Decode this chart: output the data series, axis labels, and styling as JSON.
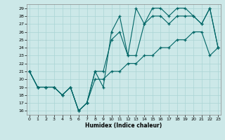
{
  "xlabel": "Humidex (Indice chaleur)",
  "background_color": "#cce8e8",
  "line_color": "#006666",
  "grid_color": "#aad4d4",
  "xlim": [
    0,
    23
  ],
  "ylim": [
    16,
    29
  ],
  "yticks": [
    16,
    17,
    18,
    19,
    20,
    21,
    22,
    23,
    24,
    25,
    26,
    27,
    28,
    29
  ],
  "xticks": [
    0,
    1,
    2,
    3,
    4,
    5,
    6,
    7,
    8,
    9,
    10,
    11,
    12,
    13,
    14,
    15,
    16,
    17,
    18,
    19,
    20,
    21,
    22,
    23
  ],
  "line1_x": [
    0,
    1,
    2,
    3,
    4,
    5,
    6,
    7,
    8,
    9,
    10,
    11,
    12,
    13,
    14,
    15,
    16,
    17,
    18,
    19,
    20,
    21,
    22,
    23
  ],
  "line1_y": [
    21,
    19,
    19,
    19,
    18,
    19,
    16,
    17,
    21,
    19,
    26,
    28,
    23,
    29,
    27,
    29,
    29,
    28,
    29,
    29,
    28,
    27,
    29,
    24
  ],
  "line2_x": [
    0,
    1,
    2,
    3,
    4,
    5,
    6,
    7,
    8,
    9,
    10,
    11,
    12,
    13,
    14,
    15,
    16,
    17,
    18,
    19,
    20,
    21,
    22,
    23
  ],
  "line2_y": [
    21,
    19,
    19,
    19,
    18,
    19,
    16,
    17,
    21,
    21,
    25,
    26,
    23,
    23,
    27,
    28,
    28,
    27,
    28,
    28,
    28,
    27,
    29,
    24
  ],
  "line3_x": [
    0,
    1,
    2,
    3,
    4,
    5,
    6,
    7,
    8,
    9,
    10,
    11,
    12,
    13,
    14,
    15,
    16,
    17,
    18,
    19,
    20,
    21,
    22,
    23
  ],
  "line3_y": [
    21,
    19,
    19,
    19,
    18,
    19,
    16,
    17,
    20,
    20,
    21,
    21,
    22,
    22,
    23,
    23,
    24,
    24,
    25,
    25,
    26,
    26,
    23,
    24
  ]
}
